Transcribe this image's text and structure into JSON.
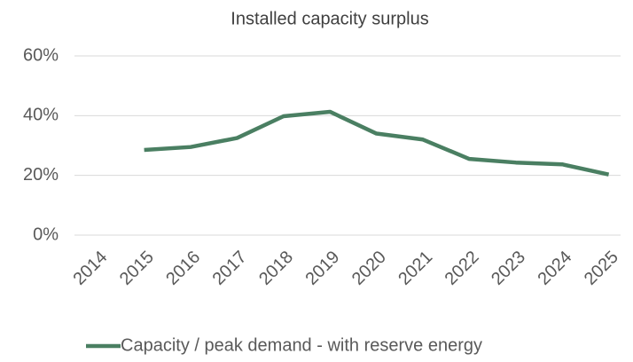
{
  "chart_data": {
    "type": "line",
    "title": "Installed capacity surplus",
    "categories": [
      "2014",
      "2015",
      "2016",
      "2017",
      "2018",
      "2019",
      "2020",
      "2021",
      "2022",
      "2023",
      "2024",
      "2025"
    ],
    "series": [
      {
        "name": "Capacity / peak demand - with reserve energy",
        "color": "#4a7f62",
        "values": [
          null,
          28.5,
          29.5,
          32.5,
          39.8,
          41.3,
          34,
          32,
          25.5,
          24.3,
          23.7,
          20.3
        ]
      }
    ],
    "ylim": [
      0,
      60
    ],
    "yticks": [
      {
        "value": 0,
        "label": "0%"
      },
      {
        "value": 20,
        "label": "20%"
      },
      {
        "value": 40,
        "label": "40%"
      },
      {
        "value": 60,
        "label": "60%"
      }
    ],
    "grid": true,
    "legend": "bottom"
  }
}
